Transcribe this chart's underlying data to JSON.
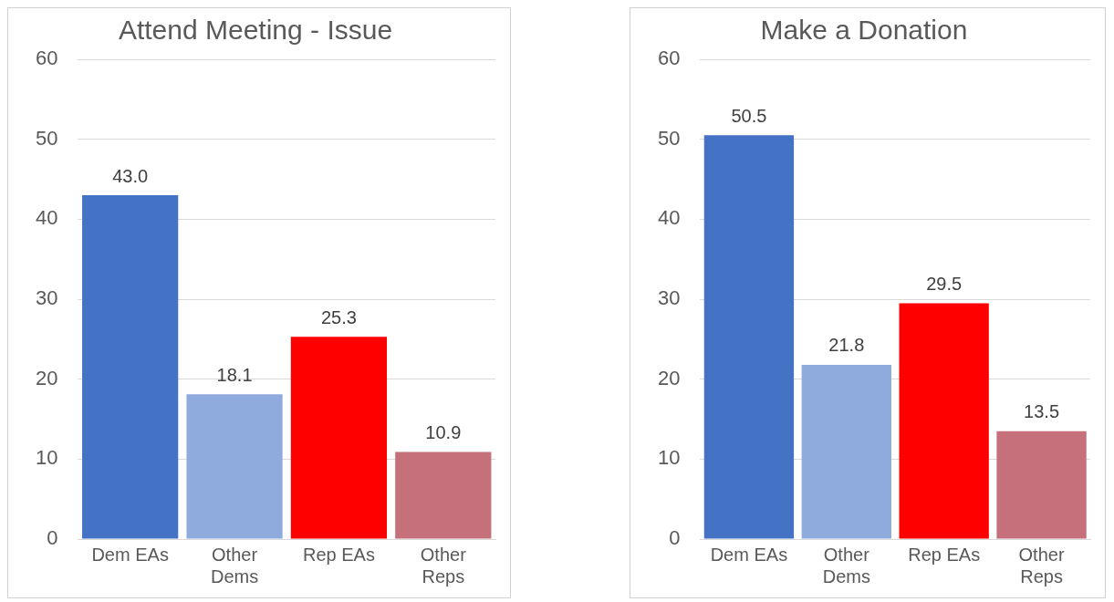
{
  "chart_data": [
    {
      "type": "bar",
      "title": "Attend Meeting - Issue",
      "categories": [
        "Dem EAs",
        "Other Dems",
        "Rep EAs",
        "Other Reps"
      ],
      "values": [
        43.0,
        18.1,
        25.3,
        10.9
      ],
      "value_labels": [
        "43.0",
        "18.1",
        "25.3",
        "10.9"
      ],
      "colors": [
        "#4472c4",
        "#8faadc",
        "#ff0000",
        "#c5707a"
      ],
      "ylim": [
        0,
        60
      ],
      "yticks": [
        0,
        10,
        20,
        30,
        40,
        50,
        60
      ],
      "grid": "y",
      "legend": false
    },
    {
      "type": "bar",
      "title": "Make a Donation",
      "categories": [
        "Dem EAs",
        "Other Dems",
        "Rep EAs",
        "Other Reps"
      ],
      "values": [
        50.5,
        21.8,
        29.5,
        13.5
      ],
      "value_labels": [
        "50.5",
        "21.8",
        "29.5",
        "13.5"
      ],
      "colors": [
        "#4472c4",
        "#8faadc",
        "#ff0000",
        "#c5707a"
      ],
      "ylim": [
        0,
        60
      ],
      "yticks": [
        0,
        10,
        20,
        30,
        40,
        50,
        60
      ],
      "grid": "y",
      "legend": false
    }
  ]
}
